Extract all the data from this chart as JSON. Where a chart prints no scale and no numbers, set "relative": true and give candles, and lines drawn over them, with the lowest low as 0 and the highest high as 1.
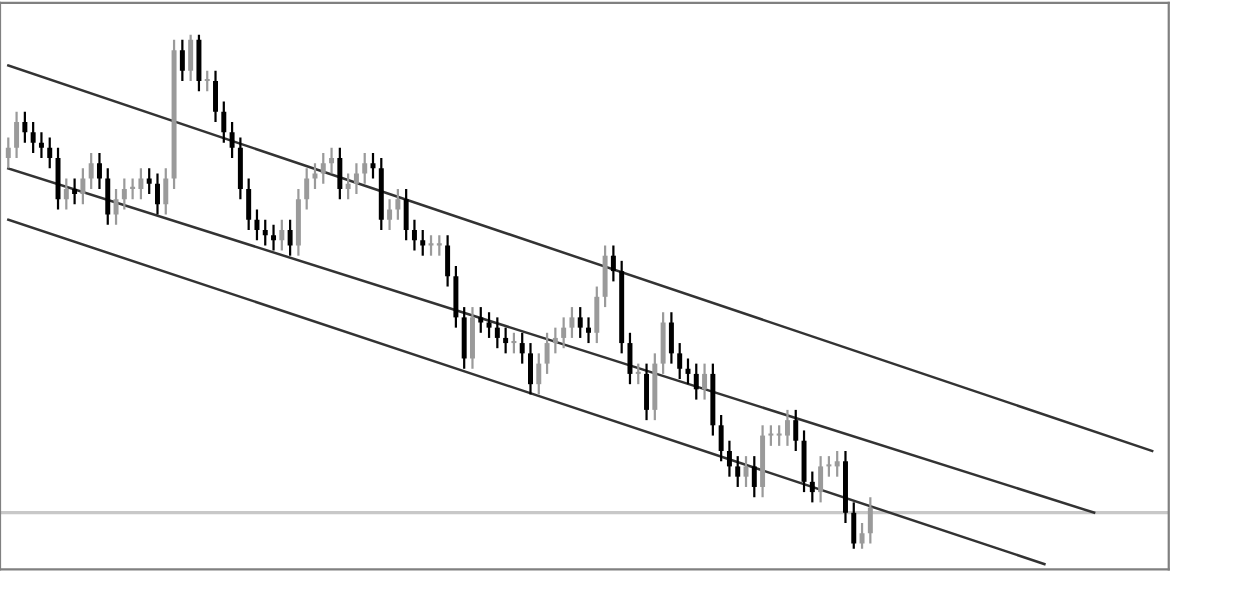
{
  "chart_data": {
    "type": "candlestick",
    "relative": true,
    "categories": [
      null,
      null,
      null,
      null,
      null,
      null,
      null,
      null,
      null,
      null,
      null,
      null,
      null,
      null,
      null,
      null,
      null,
      null,
      null,
      null,
      null,
      null,
      null,
      null,
      null,
      null,
      null,
      null,
      null,
      null,
      null,
      null,
      null,
      null,
      null,
      null,
      null,
      null,
      null,
      null,
      null,
      null,
      null,
      null,
      null,
      null,
      null,
      null,
      null,
      null,
      null,
      null,
      null,
      null,
      null,
      null,
      null,
      null,
      null,
      null,
      null,
      null,
      null,
      null,
      null,
      null,
      null,
      null,
      null,
      null,
      null,
      null,
      null,
      null,
      null,
      null,
      null,
      null,
      null,
      null,
      null,
      null,
      null,
      null,
      null,
      null,
      null,
      null,
      null,
      null,
      null,
      null,
      null,
      null,
      null,
      null,
      null,
      null,
      null,
      null,
      null,
      null,
      null,
      null,
      null,
      null,
      null,
      null,
      null,
      null,
      null,
      null,
      null,
      null,
      null,
      null,
      null,
      null,
      null,
      null,
      null,
      null,
      null,
      null,
      null,
      null,
      null,
      null,
      null,
      null,
      null,
      null,
      null,
      null,
      null,
      null,
      null,
      null,
      null,
      null
    ],
    "ohlc": [
      [
        0.76,
        0.8,
        0.74,
        0.78
      ],
      [
        0.78,
        0.85,
        0.76,
        0.83
      ],
      [
        0.83,
        0.85,
        0.79,
        0.81
      ],
      [
        0.81,
        0.83,
        0.77,
        0.79
      ],
      [
        0.79,
        0.81,
        0.76,
        0.78
      ],
      [
        0.78,
        0.8,
        0.74,
        0.76
      ],
      [
        0.76,
        0.78,
        0.66,
        0.68
      ],
      [
        0.68,
        0.72,
        0.66,
        0.7
      ],
      [
        0.7,
        0.72,
        0.67,
        0.69
      ],
      [
        0.69,
        0.74,
        0.67,
        0.72
      ],
      [
        0.72,
        0.77,
        0.7,
        0.75
      ],
      [
        0.75,
        0.77,
        0.7,
        0.72
      ],
      [
        0.72,
        0.74,
        0.63,
        0.65
      ],
      [
        0.65,
        0.7,
        0.63,
        0.68
      ],
      [
        0.68,
        0.72,
        0.66,
        0.7
      ],
      [
        0.7,
        0.72,
        0.68,
        0.7
      ],
      [
        0.7,
        0.74,
        0.68,
        0.72
      ],
      [
        0.72,
        0.74,
        0.69,
        0.71
      ],
      [
        0.71,
        0.73,
        0.65,
        0.67
      ],
      [
        0.67,
        0.74,
        0.65,
        0.72
      ],
      [
        0.72,
        0.99,
        0.7,
        0.97
      ],
      [
        0.97,
        0.99,
        0.91,
        0.93
      ],
      [
        0.93,
        1.0,
        0.91,
        0.99
      ],
      [
        0.99,
        1.0,
        0.89,
        0.91
      ],
      [
        0.91,
        0.93,
        0.89,
        0.91
      ],
      [
        0.91,
        0.93,
        0.83,
        0.85
      ],
      [
        0.85,
        0.87,
        0.79,
        0.81
      ],
      [
        0.81,
        0.83,
        0.76,
        0.78
      ],
      [
        0.78,
        0.8,
        0.68,
        0.7
      ],
      [
        0.7,
        0.72,
        0.62,
        0.64
      ],
      [
        0.64,
        0.66,
        0.6,
        0.62
      ],
      [
        0.62,
        0.64,
        0.59,
        0.61
      ],
      [
        0.61,
        0.63,
        0.58,
        0.6
      ],
      [
        0.6,
        0.64,
        0.58,
        0.62
      ],
      [
        0.62,
        0.64,
        0.57,
        0.59
      ],
      [
        0.59,
        0.7,
        0.57,
        0.68
      ],
      [
        0.68,
        0.74,
        0.66,
        0.72
      ],
      [
        0.72,
        0.75,
        0.7,
        0.73
      ],
      [
        0.73,
        0.77,
        0.71,
        0.75
      ],
      [
        0.75,
        0.78,
        0.73,
        0.76
      ],
      [
        0.76,
        0.78,
        0.68,
        0.7
      ],
      [
        0.7,
        0.73,
        0.68,
        0.71
      ],
      [
        0.71,
        0.75,
        0.69,
        0.73
      ],
      [
        0.73,
        0.77,
        0.71,
        0.75
      ],
      [
        0.75,
        0.77,
        0.72,
        0.74
      ],
      [
        0.74,
        0.76,
        0.62,
        0.64
      ],
      [
        0.64,
        0.68,
        0.62,
        0.66
      ],
      [
        0.66,
        0.7,
        0.64,
        0.68
      ],
      [
        0.68,
        0.7,
        0.6,
        0.62
      ],
      [
        0.62,
        0.64,
        0.58,
        0.6
      ],
      [
        0.6,
        0.62,
        0.57,
        0.59
      ],
      [
        0.59,
        0.61,
        0.57,
        0.59
      ],
      [
        0.59,
        0.61,
        0.57,
        0.59
      ],
      [
        0.59,
        0.61,
        0.51,
        0.53
      ],
      [
        0.53,
        0.55,
        0.43,
        0.45
      ],
      [
        0.45,
        0.47,
        0.35,
        0.37
      ],
      [
        0.37,
        0.47,
        0.35,
        0.45
      ],
      [
        0.45,
        0.47,
        0.42,
        0.44
      ],
      [
        0.44,
        0.46,
        0.41,
        0.43
      ],
      [
        0.43,
        0.45,
        0.39,
        0.41
      ],
      [
        0.41,
        0.43,
        0.38,
        0.4
      ],
      [
        0.4,
        0.42,
        0.38,
        0.4
      ],
      [
        0.4,
        0.42,
        0.36,
        0.38
      ],
      [
        0.38,
        0.4,
        0.3,
        0.32
      ],
      [
        0.32,
        0.38,
        0.3,
        0.36
      ],
      [
        0.36,
        0.42,
        0.34,
        0.4
      ],
      [
        0.4,
        0.43,
        0.38,
        0.41
      ],
      [
        0.41,
        0.45,
        0.39,
        0.43
      ],
      [
        0.43,
        0.47,
        0.41,
        0.45
      ],
      [
        0.45,
        0.47,
        0.41,
        0.43
      ],
      [
        0.43,
        0.45,
        0.4,
        0.42
      ],
      [
        0.42,
        0.51,
        0.4,
        0.49
      ],
      [
        0.49,
        0.59,
        0.47,
        0.57
      ],
      [
        0.57,
        0.59,
        0.52,
        0.54
      ],
      [
        0.54,
        0.56,
        0.38,
        0.4
      ],
      [
        0.4,
        0.42,
        0.32,
        0.34
      ],
      [
        0.34,
        0.36,
        0.32,
        0.34
      ],
      [
        0.34,
        0.36,
        0.25,
        0.27
      ],
      [
        0.27,
        0.38,
        0.25,
        0.36
      ],
      [
        0.36,
        0.46,
        0.34,
        0.44
      ],
      [
        0.44,
        0.46,
        0.36,
        0.38
      ],
      [
        0.38,
        0.4,
        0.33,
        0.35
      ],
      [
        0.35,
        0.37,
        0.32,
        0.34
      ],
      [
        0.34,
        0.36,
        0.29,
        0.31
      ],
      [
        0.31,
        0.36,
        0.29,
        0.34
      ],
      [
        0.34,
        0.36,
        0.22,
        0.24
      ],
      [
        0.24,
        0.26,
        0.17,
        0.19
      ],
      [
        0.19,
        0.21,
        0.14,
        0.16
      ],
      [
        0.16,
        0.18,
        0.12,
        0.14
      ],
      [
        0.14,
        0.18,
        0.12,
        0.16
      ],
      [
        0.16,
        0.18,
        0.1,
        0.12
      ],
      [
        0.12,
        0.24,
        0.1,
        0.22
      ],
      [
        0.22,
        0.24,
        0.2,
        0.22
      ],
      [
        0.22,
        0.24,
        0.2,
        0.22
      ],
      [
        0.22,
        0.27,
        0.2,
        0.25
      ],
      [
        0.25,
        0.27,
        0.19,
        0.21
      ],
      [
        0.21,
        0.23,
        0.11,
        0.13
      ],
      [
        0.13,
        0.15,
        0.09,
        0.11
      ],
      [
        0.11,
        0.18,
        0.09,
        0.16
      ],
      [
        0.16,
        0.18,
        0.14,
        0.16
      ],
      [
        0.16,
        0.19,
        0.14,
        0.17
      ],
      [
        0.17,
        0.19,
        0.05,
        0.07
      ],
      [
        0.07,
        0.09,
        0.0,
        0.01
      ],
      [
        0.01,
        0.05,
        0.0,
        0.03
      ],
      [
        0.03,
        0.1,
        0.01,
        0.08
      ],
      null,
      null,
      null,
      null,
      null,
      null,
      null,
      null,
      null,
      null,
      null,
      null,
      null,
      null,
      null,
      null,
      null,
      null,
      null,
      null,
      null,
      null,
      null,
      null,
      null,
      null,
      null,
      null,
      null,
      null,
      null,
      null,
      null,
      null,
      null
    ],
    "series": [
      {
        "type": "line",
        "color": "#333333",
        "values": [
          0.94,
          null,
          null,
          null,
          null,
          null,
          null,
          null,
          null,
          null,
          null,
          null,
          null,
          null,
          null,
          null,
          null,
          null,
          null,
          null,
          null,
          null,
          null,
          null,
          null,
          null,
          null,
          null,
          null,
          null,
          null,
          null,
          null,
          null,
          null,
          null,
          null,
          null,
          null,
          null,
          null,
          null,
          null,
          null,
          null,
          null,
          null,
          null,
          null,
          null,
          null,
          null,
          null,
          null,
          null,
          null,
          null,
          null,
          null,
          null,
          null,
          null,
          null,
          null,
          null,
          null,
          null,
          null,
          null,
          null,
          null,
          null,
          null,
          null,
          null,
          null,
          null,
          null,
          null,
          null,
          null,
          null,
          null,
          null,
          null,
          null,
          null,
          null,
          null,
          null,
          null,
          null,
          null,
          null,
          null,
          null,
          null,
          null,
          null,
          null,
          null,
          null,
          null,
          null,
          null,
          null,
          null,
          null,
          null,
          null,
          null,
          null,
          null,
          null,
          null,
          null,
          null,
          null,
          null,
          null,
          null,
          null,
          null,
          null,
          null,
          null,
          null,
          null,
          null,
          null,
          null,
          null,
          null,
          null,
          null,
          null,
          null,
          null,
          0.19,
          null
        ]
      },
      {
        "type": "line",
        "color": "#333333",
        "values": [
          0.74,
          null,
          null,
          null,
          null,
          null,
          null,
          null,
          null,
          null,
          null,
          null,
          null,
          null,
          null,
          null,
          null,
          null,
          null,
          null,
          null,
          null,
          null,
          null,
          null,
          null,
          null,
          null,
          null,
          null,
          null,
          null,
          null,
          null,
          null,
          null,
          null,
          null,
          null,
          null,
          null,
          null,
          null,
          null,
          null,
          null,
          null,
          null,
          null,
          null,
          null,
          null,
          null,
          null,
          null,
          null,
          null,
          null,
          null,
          null,
          null,
          null,
          null,
          null,
          null,
          null,
          null,
          null,
          null,
          null,
          null,
          null,
          null,
          null,
          null,
          null,
          null,
          null,
          null,
          null,
          null,
          null,
          null,
          null,
          null,
          null,
          null,
          null,
          null,
          null,
          null,
          null,
          null,
          null,
          null,
          null,
          null,
          null,
          null,
          null,
          null,
          null,
          null,
          null,
          null,
          null,
          null,
          null,
          null,
          null,
          null,
          null,
          null,
          null,
          null,
          null,
          null,
          null,
          null,
          null,
          null,
          null,
          null,
          null,
          null,
          null,
          null,
          null,
          null,
          null,
          null,
          0.07,
          null,
          null,
          null,
          null,
          null,
          null,
          null,
          null
        ]
      },
      {
        "type": "line",
        "color": "#333333",
        "values": [
          0.64,
          null,
          null,
          null,
          null,
          null,
          null,
          null,
          null,
          null,
          null,
          null,
          null,
          null,
          null,
          null,
          null,
          null,
          null,
          null,
          null,
          null,
          null,
          null,
          null,
          null,
          null,
          null,
          null,
          null,
          null,
          null,
          null,
          null,
          null,
          null,
          null,
          null,
          null,
          null,
          null,
          null,
          null,
          null,
          null,
          null,
          null,
          null,
          null,
          null,
          null,
          null,
          null,
          null,
          null,
          null,
          null,
          null,
          null,
          null,
          null,
          null,
          null,
          null,
          null,
          null,
          null,
          null,
          null,
          null,
          null,
          null,
          null,
          null,
          null,
          null,
          null,
          null,
          null,
          null,
          null,
          null,
          null,
          null,
          null,
          null,
          null,
          null,
          null,
          null,
          null,
          null,
          null,
          null,
          null,
          null,
          null,
          null,
          null,
          null,
          null,
          null,
          null,
          null,
          null,
          null,
          null,
          null,
          null,
          null,
          null,
          null,
          null,
          null,
          null,
          null,
          null,
          null,
          null,
          null,
          null,
          null,
          null,
          null,
          null,
          -0.03,
          null,
          null,
          null,
          null,
          null,
          null,
          null,
          null,
          null,
          null,
          null,
          null,
          null,
          null
        ]
      }
    ],
    "ref_lines": [
      {
        "axis": "y",
        "value": 0.07,
        "color": "#c8c8c8"
      }
    ]
  }
}
